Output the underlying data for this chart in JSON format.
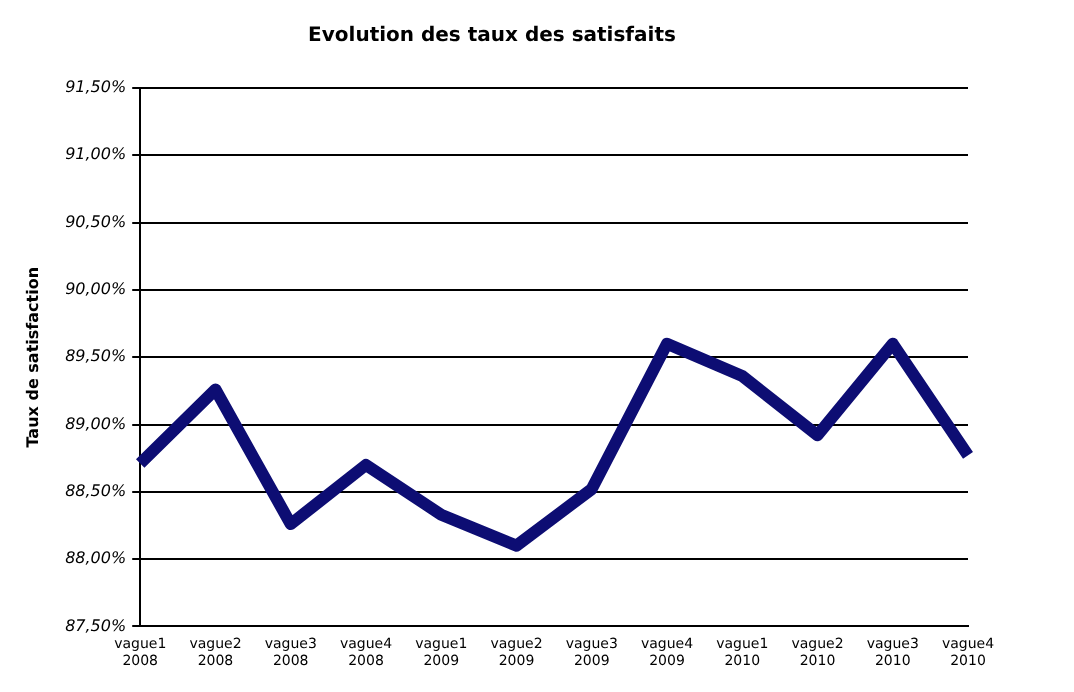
{
  "chart_data": {
    "type": "line",
    "title": "Evolution des taux des satisfaits",
    "ylabel": "Taux de satisfaction",
    "categories": [
      "vague1 2008",
      "vague2 2008",
      "vague3 2008",
      "vague4 2008",
      "vague1 2009",
      "vague2 2009",
      "vague3 2009",
      "vague4 2009",
      "vague1 2010",
      "vague2 2010",
      "vague3 2010",
      "vague4 2010"
    ],
    "series": [
      {
        "color": "#0d0d73",
        "values": [
          88.71,
          89.26,
          88.26,
          88.7,
          88.33,
          88.1,
          88.52,
          89.6,
          89.36,
          88.92,
          89.6,
          88.77
        ]
      }
    ],
    "ylim": [
      87.5,
      91.5
    ],
    "yticks": [
      {
        "value": 87.5,
        "label": "87,50%"
      },
      {
        "value": 88,
        "label": "88,00%"
      },
      {
        "value": 88.5,
        "label": "88,50%"
      },
      {
        "value": 89,
        "label": "89,00%"
      },
      {
        "value": 89.5,
        "label": "89,50%"
      },
      {
        "value": 90,
        "label": "90,00%"
      },
      {
        "value": 90.5,
        "label": "90,50%"
      },
      {
        "value": 91,
        "label": "91,00%"
      },
      {
        "value": 91.5,
        "label": "91,50%"
      }
    ],
    "grid": "y",
    "legend": false,
    "marker": "none",
    "line_style": "solid"
  }
}
